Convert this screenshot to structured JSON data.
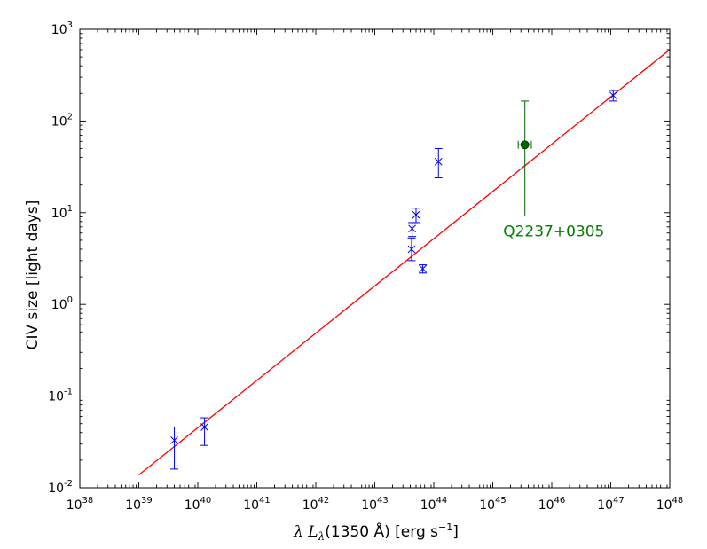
{
  "chart_data": {
    "type": "scatter",
    "x_scale": "log",
    "y_scale": "log",
    "xlim": [
      1e+38,
      1e+48
    ],
    "ylim": [
      0.01,
      1000
    ],
    "grid": false,
    "xlabel": "λ L_λ(1350 Å) [erg s⁻¹]",
    "xlabel_parts": {
      "math": "λ L",
      "sub": "λ",
      "mid": "(1350 Å) [erg s",
      "sup": "−1",
      "end": "]"
    },
    "ylabel": "CIV size [light days]",
    "x_ticks": [
      {
        "base": "10",
        "exp": "38"
      },
      {
        "base": "10",
        "exp": "39"
      },
      {
        "base": "10",
        "exp": "40"
      },
      {
        "base": "10",
        "exp": "41"
      },
      {
        "base": "10",
        "exp": "42"
      },
      {
        "base": "10",
        "exp": "43"
      },
      {
        "base": "10",
        "exp": "44"
      },
      {
        "base": "10",
        "exp": "45"
      },
      {
        "base": "10",
        "exp": "46"
      },
      {
        "base": "10",
        "exp": "47"
      },
      {
        "base": "10",
        "exp": "48"
      }
    ],
    "y_ticks": [
      {
        "base": "10",
        "exp": "-2"
      },
      {
        "base": "10",
        "exp": "-1"
      },
      {
        "base": "10",
        "exp": "0"
      },
      {
        "base": "10",
        "exp": "1"
      },
      {
        "base": "10",
        "exp": "2"
      },
      {
        "base": "10",
        "exp": "3"
      }
    ],
    "series": [
      {
        "marker": "x",
        "color": "#0000ff",
        "points": [
          {
            "x": 4e+39,
            "y": 0.033,
            "ylo": 0.016,
            "yhi": 0.046
          },
          {
            "x": 1.3e+40,
            "y": 0.046,
            "ylo": 0.029,
            "yhi": 0.058
          },
          {
            "x": 4.2e+43,
            "y": 4.0,
            "ylo": 3.0,
            "yhi": 5.3
          },
          {
            "x": 4.3e+43,
            "y": 6.7,
            "ylo": 5.5,
            "yhi": 7.8
          },
          {
            "x": 5e+43,
            "y": 9.5,
            "ylo": 7.8,
            "yhi": 11.2
          },
          {
            "x": 6.5e+43,
            "y": 2.45,
            "ylo": 2.2,
            "yhi": 2.7
          },
          {
            "x": 1.2e+44,
            "y": 36,
            "ylo": 24,
            "yhi": 50
          },
          {
            "x": 1.1e+47,
            "y": 190,
            "ylo": 165,
            "yhi": 215
          }
        ]
      },
      {
        "marker": "o",
        "color": "#006400",
        "points": [
          {
            "x": 3.5e+45,
            "y": 55,
            "ylo": 9.2,
            "yhi": 165,
            "xlo": 2.7e+45,
            "xhi": 4.5e+45
          }
        ]
      }
    ],
    "fit_line": {
      "color": "#ff0000",
      "x": [
        1e+39,
        1e+48
      ],
      "y": [
        0.0138,
        600
      ]
    },
    "annotations": [
      {
        "text": "Q2237+0305",
        "x": 1.5e+45,
        "y": 5.5,
        "color": "#008000"
      }
    ]
  }
}
